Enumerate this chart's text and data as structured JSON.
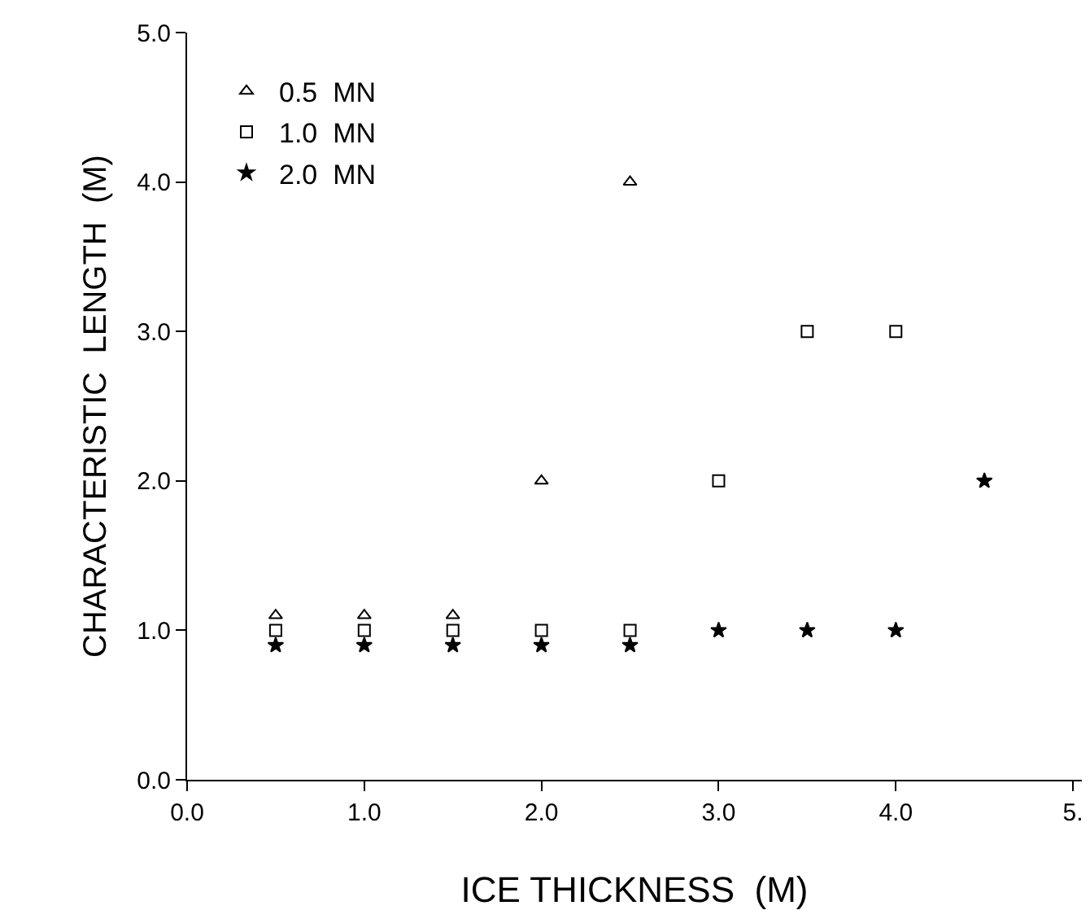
{
  "chart_data": {
    "type": "scatter",
    "xlabel": "ICE THICKNESS  (M)",
    "ylabel": "CHARACTERISTIC  LENGTH  (M)",
    "xlim": [
      0,
      5.05
    ],
    "ylim": [
      0,
      5.0
    ],
    "xticks": [
      {
        "value": 0,
        "label": "0.0"
      },
      {
        "value": 1,
        "label": "1.0"
      },
      {
        "value": 2,
        "label": "2.0"
      },
      {
        "value": 3,
        "label": "3.0"
      },
      {
        "value": 4,
        "label": "4.0"
      },
      {
        "value": 5,
        "label": "5."
      }
    ],
    "yticks": [
      {
        "value": 0,
        "label": "0.0"
      },
      {
        "value": 1,
        "label": "1.0"
      },
      {
        "value": 2,
        "label": "2.0"
      },
      {
        "value": 3,
        "label": "3.0"
      },
      {
        "value": 4,
        "label": "4.0"
      },
      {
        "value": 5,
        "label": "5.0"
      }
    ],
    "grid": false,
    "legend": "top left",
    "series": [
      {
        "name": "0.5  MN",
        "color": "#000000",
        "marker": "triangle",
        "x": [
          0.5,
          1,
          1.5,
          2,
          2.5
        ],
        "values": [
          1.1,
          1.1,
          1.1,
          2.0,
          4.0
        ]
      },
      {
        "name": "1.0  MN",
        "color": "#000000",
        "marker": "square",
        "x": [
          0.5,
          1,
          1.5,
          2,
          2.5,
          3,
          3.5,
          4
        ],
        "values": [
          1.0,
          1.0,
          1.0,
          1.0,
          1.0,
          2.0,
          3.0,
          3.0
        ]
      },
      {
        "name": "2.0  MN",
        "color": "#000000",
        "marker": "star",
        "x": [
          0.5,
          1,
          1.5,
          2,
          2.5,
          3,
          3.5,
          4,
          4.5
        ],
        "values": [
          0.9,
          0.9,
          0.9,
          0.9,
          0.9,
          1.0,
          1.0,
          1.0,
          2.0
        ]
      }
    ]
  }
}
